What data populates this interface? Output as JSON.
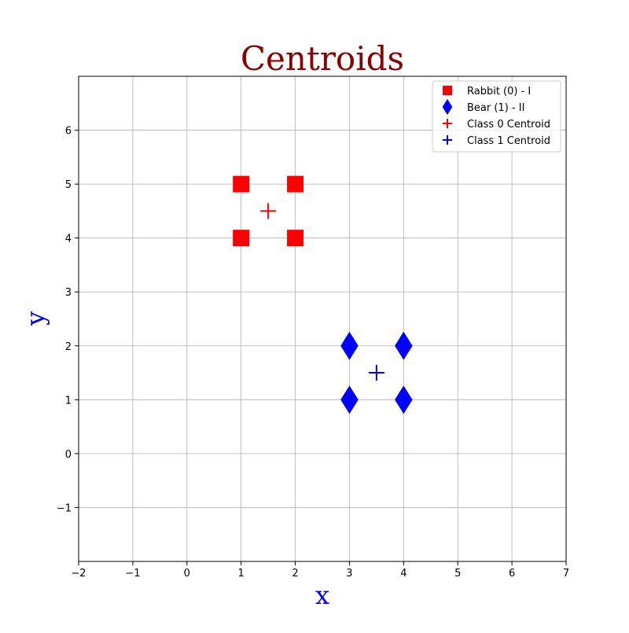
{
  "chart_data": {
    "type": "scatter",
    "title": "Centroids",
    "xlabel": "x",
    "ylabel": "y",
    "xlim": [
      -2,
      7
    ],
    "ylim": [
      -2,
      7
    ],
    "xticks": [
      -2,
      -1,
      0,
      1,
      2,
      3,
      4,
      5,
      6,
      7
    ],
    "yticks": [
      -1,
      0,
      1,
      2,
      3,
      4,
      5,
      6
    ],
    "xtick_labels": [
      "−2",
      "−1",
      "0",
      "1",
      "2",
      "3",
      "4",
      "5",
      "6",
      "7"
    ],
    "ytick_labels": [
      "−1",
      "0",
      "1",
      "2",
      "3",
      "4",
      "5",
      "6"
    ],
    "grid": true,
    "legend_position": "top-right",
    "colors": {
      "title": "#8b0000",
      "axis_label": "#0000ff",
      "class0": "#ff0000",
      "class1": "#0000ff",
      "grid": "#b0b0b0"
    },
    "series": [
      {
        "name": "Rabbit (0) - I",
        "marker": "square",
        "color": "#ff0000",
        "points": [
          [
            1,
            5
          ],
          [
            2,
            5
          ],
          [
            1,
            4
          ],
          [
            2,
            4
          ]
        ]
      },
      {
        "name": "Bear (1) - II",
        "marker": "diamond",
        "color": "#0000ff",
        "points": [
          [
            3,
            2
          ],
          [
            4,
            2
          ],
          [
            3,
            1
          ],
          [
            4,
            1
          ]
        ]
      },
      {
        "name": "Class 0 Centroid",
        "marker": "plus",
        "color": "#ff0000",
        "points": [
          [
            1.5,
            4.5
          ]
        ]
      },
      {
        "name": "Class 1 Centroid",
        "marker": "plus",
        "color": "#0000ff",
        "points": [
          [
            3.5,
            1.5
          ]
        ]
      }
    ]
  }
}
